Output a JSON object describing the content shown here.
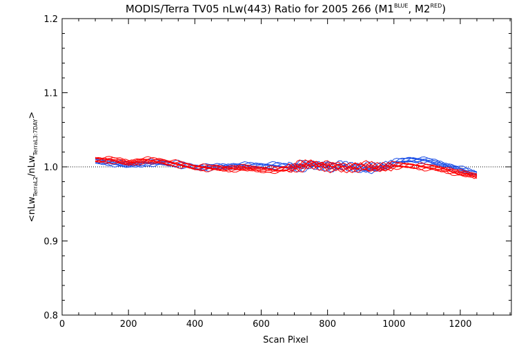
{
  "chart_data": {
    "type": "line",
    "title": "MODIS/Terra TV05 nLw(443) Ratio for 2005 266 (M1",
    "title_sup1": "BLUE",
    "title_mid": ", M2",
    "title_sup2": "RED",
    "title_end": ")",
    "xlabel": "Scan Pixel",
    "ylabel": {
      "p1": "<nLw",
      "s1": "TerraL2",
      "p2": "/nLw",
      "s2": "TerraL3:7DAY",
      "p3": ">"
    },
    "xlim": [
      0,
      1354
    ],
    "ylim": [
      0.8,
      1.2
    ],
    "xticks": [
      0,
      200,
      400,
      600,
      800,
      1000,
      1200
    ],
    "yticks": [
      0.8,
      0.9,
      1.0,
      1.1,
      1.2
    ],
    "xtick_labels": [
      "0",
      "200",
      "400",
      "600",
      "800",
      "1000",
      "1200"
    ],
    "ytick_labels": [
      "0.8",
      "0.9",
      "1.0",
      "1.1",
      "1.2"
    ],
    "reference_line": 1.0,
    "series": [
      {
        "color": "#1a4ee6",
        "x": [
          100,
          150,
          200,
          250,
          300,
          350,
          400,
          450,
          500,
          550,
          600,
          650,
          700,
          750,
          800,
          850,
          900,
          950,
          1000,
          1050,
          1100,
          1150,
          1200,
          1250
        ],
        "values": [
          1.008,
          1.006,
          1.003,
          1.005,
          1.006,
          1.004,
          1.0,
          1.0,
          1.001,
          1.002,
          1.002,
          1.002,
          1.001,
          1.003,
          1.002,
          1.001,
          0.999,
          0.998,
          1.006,
          1.01,
          1.009,
          1.003,
          0.997,
          0.991
        ]
      },
      {
        "color": "#ff0000",
        "x": [
          100,
          150,
          200,
          250,
          300,
          350,
          400,
          450,
          500,
          550,
          600,
          650,
          700,
          750,
          800,
          850,
          900,
          950,
          1000,
          1050,
          1100,
          1150,
          1200,
          1250
        ],
        "values": [
          1.01,
          1.01,
          1.006,
          1.009,
          1.008,
          1.004,
          1.0,
          0.999,
          0.998,
          0.999,
          0.997,
          0.996,
          1.0,
          1.004,
          1.002,
          0.999,
          1.001,
          0.999,
          1.002,
          1.002,
          1.0,
          0.997,
          0.992,
          0.988
        ]
      }
    ]
  }
}
